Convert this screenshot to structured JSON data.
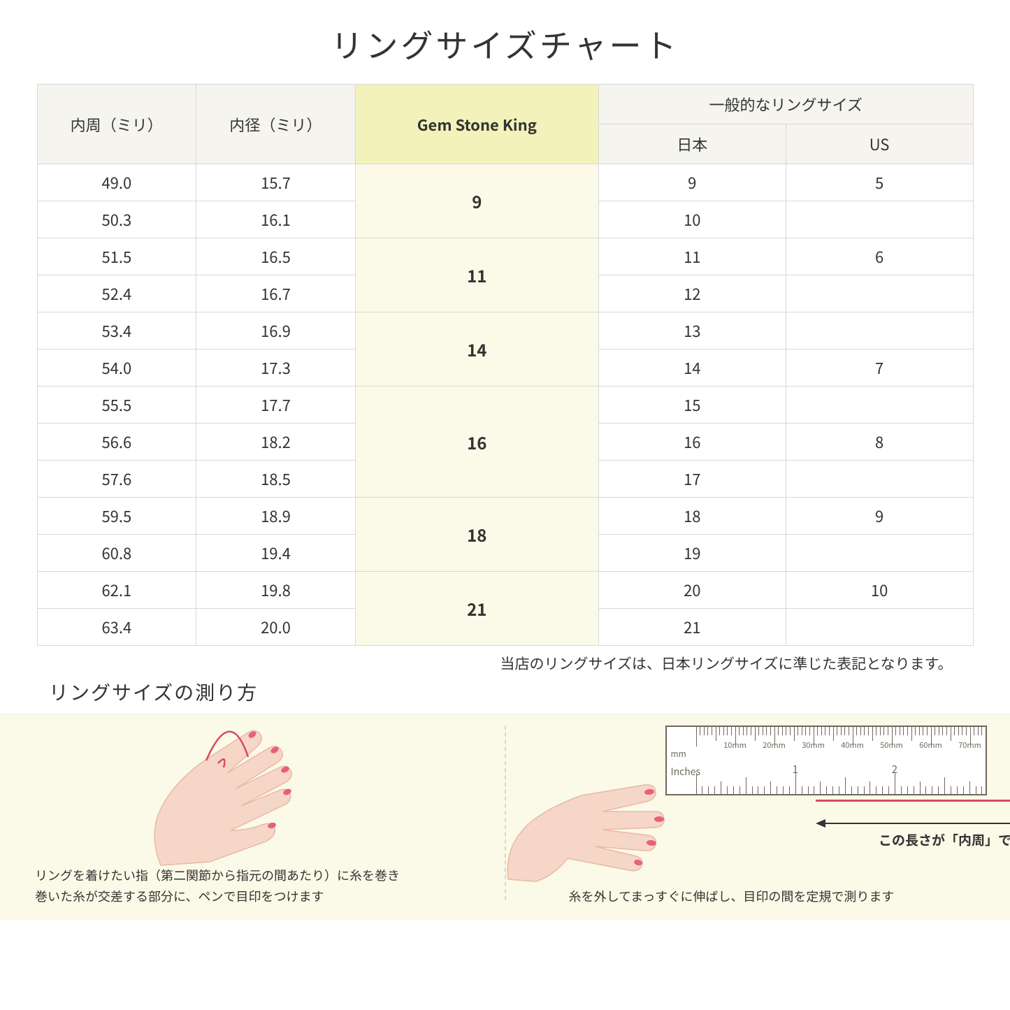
{
  "title": "リングサイズチャート",
  "headers": {
    "circumference": "内周（ミリ）",
    "diameter": "内径（ミリ）",
    "gsk": "Gem Stone King",
    "general": "一般的なリングサイズ",
    "japan": "日本",
    "us": "US"
  },
  "rows": [
    {
      "c": "49.0",
      "d": "15.7",
      "jp": "9",
      "us": "5"
    },
    {
      "c": "50.3",
      "d": "16.1",
      "jp": "10",
      "us": ""
    },
    {
      "c": "51.5",
      "d": "16.5",
      "jp": "11",
      "us": "6"
    },
    {
      "c": "52.4",
      "d": "16.7",
      "jp": "12",
      "us": ""
    },
    {
      "c": "53.4",
      "d": "16.9",
      "jp": "13",
      "us": ""
    },
    {
      "c": "54.0",
      "d": "17.3",
      "jp": "14",
      "us": "7"
    },
    {
      "c": "55.5",
      "d": "17.7",
      "jp": "15",
      "us": ""
    },
    {
      "c": "56.6",
      "d": "18.2",
      "jp": "16",
      "us": "8"
    },
    {
      "c": "57.6",
      "d": "18.5",
      "jp": "17",
      "us": ""
    },
    {
      "c": "59.5",
      "d": "18.9",
      "jp": "18",
      "us": "9"
    },
    {
      "c": "60.8",
      "d": "19.4",
      "jp": "19",
      "us": ""
    },
    {
      "c": "62.1",
      "d": "19.8",
      "jp": "20",
      "us": "10"
    },
    {
      "c": "63.4",
      "d": "20.0",
      "jp": "21",
      "us": ""
    }
  ],
  "gsk_groups": [
    {
      "label": "9",
      "span": 2
    },
    {
      "label": "11",
      "span": 2
    },
    {
      "label": "14",
      "span": 2
    },
    {
      "label": "16",
      "span": 3
    },
    {
      "label": "18",
      "span": 2
    },
    {
      "label": "21",
      "span": 2
    }
  ],
  "note": "当店のリングサイズは、日本リングサイズに準じた表記となります。",
  "howto": {
    "title": "リングサイズの測り方",
    "left_line1": "リングを着けたい指（第二関節から指元の間あたり）に糸を巻き",
    "left_line2": "巻いた糸が交差する部分に、ペンで目印をつけます",
    "right_line": "糸を外してまっすぐに伸ばし、目印の間を定規で測ります",
    "arrow_caption": "この長さが「内周」です"
  },
  "ruler": {
    "mm_label": "mm",
    "in_label": "Inches",
    "mm_marks": [
      "10mm",
      "20mm",
      "30mm",
      "40mm",
      "50mm",
      "60mm",
      "70mm"
    ],
    "in_marks": [
      "1",
      "2"
    ]
  },
  "colors": {
    "header_bg": "#f5f4ef",
    "highlight_bg": "#f3f2ba",
    "gsk_cell_bg": "#fbfae8",
    "panel_bg": "#fbf9e7",
    "border": "#d8d8d8",
    "text": "#333333",
    "hand_skin": "#f6d6c7",
    "hand_outline": "#e8b9a5",
    "nail": "#e8607a",
    "thread": "#d84a5f",
    "ruler_stroke": "#6e685e"
  }
}
